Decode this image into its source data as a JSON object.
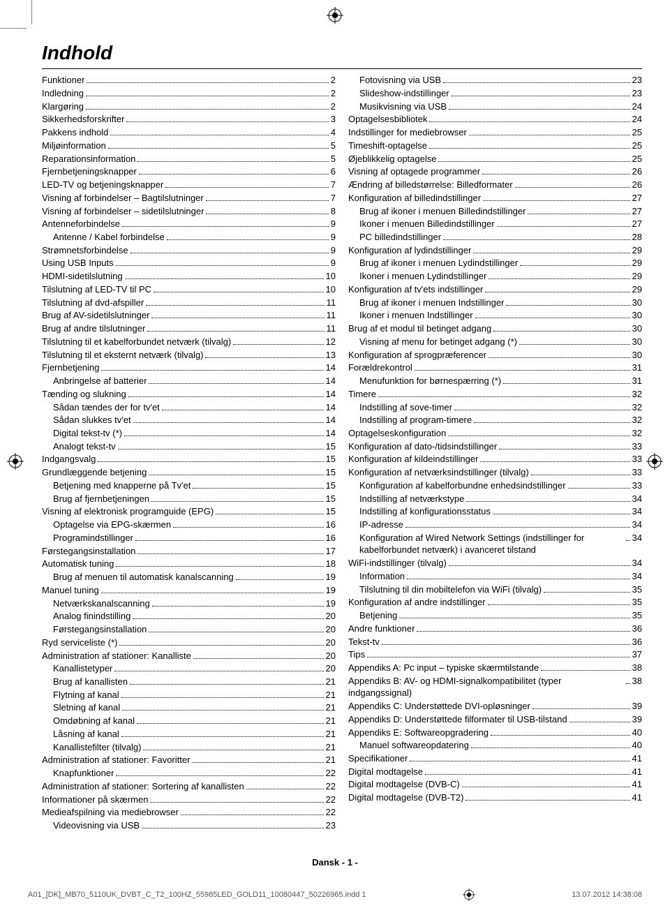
{
  "title": "Indhold",
  "footer_center": "Dansk   - 1 -",
  "footer_left": "A01_[DK]_MB70_5110UK_DVBT_C_T2_100HZ_55985LED_GOLD11_10080447_50226965.indd   1",
  "footer_right": "13.07.2012   14:38:08",
  "left": [
    {
      "t": "Funktioner",
      "p": "2",
      "i": 0
    },
    {
      "t": "Indledning",
      "p": "2",
      "i": 0
    },
    {
      "t": "Klargøring",
      "p": "2",
      "i": 0
    },
    {
      "t": "Sikkerhedsforskrifter",
      "p": "3",
      "i": 0
    },
    {
      "t": "Pakkens indhold",
      "p": "4",
      "i": 0
    },
    {
      "t": "Miljøinformation",
      "p": "5",
      "i": 0
    },
    {
      "t": "Reparationsinformation",
      "p": "5",
      "i": 0
    },
    {
      "t": "Fjernbetjeningsknapper",
      "p": "6",
      "i": 0
    },
    {
      "t": "LED-TV og betjeningsknapper",
      "p": "7",
      "i": 0
    },
    {
      "t": "Visning af forbindelser – Bagtilslutninger",
      "p": "7",
      "i": 0
    },
    {
      "t": "Visning af forbindelser – sidetilslutninger",
      "p": "8",
      "i": 0
    },
    {
      "t": "Antenneforbindelse",
      "p": "9",
      "i": 0
    },
    {
      "t": "Antenne / Kabel forbindelse",
      "p": "9",
      "i": 1
    },
    {
      "t": "Strømnetsforbindelse",
      "p": "9",
      "i": 0
    },
    {
      "t": "Using USB Inputs",
      "p": "9",
      "i": 0
    },
    {
      "t": "HDMI-sidetilslutning",
      "p": "10",
      "i": 0
    },
    {
      "t": "Tilslutning af LED-TV til PC",
      "p": "10",
      "i": 0
    },
    {
      "t": "Tilslutning af dvd-afspiller",
      "p": "11",
      "i": 0
    },
    {
      "t": "Brug af AV-sidetilslutninger",
      "p": "11",
      "i": 0
    },
    {
      "t": "Brug af andre tilslutninger",
      "p": "11",
      "i": 0
    },
    {
      "t": "Tilslutning til et kabelforbundet netværk (tilvalg)",
      "p": "12",
      "i": 0
    },
    {
      "t": "Tilslutning til et eksternt netværk (tilvalg)",
      "p": "13",
      "i": 0
    },
    {
      "t": "Fjernbetjening",
      "p": "14",
      "i": 0
    },
    {
      "t": "Anbringelse af batterier",
      "p": "14",
      "i": 1
    },
    {
      "t": "Tænding og slukning",
      "p": "14",
      "i": 0
    },
    {
      "t": "Sådan tændes der for tv'et",
      "p": "14",
      "i": 1
    },
    {
      "t": "Sådan slukkes tv'et",
      "p": "14",
      "i": 1
    },
    {
      "t": "Digital tekst-tv (*)",
      "p": "14",
      "i": 1
    },
    {
      "t": "Analogt tekst-tv",
      "p": "15",
      "i": 1
    },
    {
      "t": "Indgangsvalg",
      "p": "15",
      "i": 0
    },
    {
      "t": "Grundlæggende betjening",
      "p": "15",
      "i": 0
    },
    {
      "t": "Betjening med knapperne på Tv'et",
      "p": "15",
      "i": 1
    },
    {
      "t": "Brug af fjernbetjeningen",
      "p": "15",
      "i": 1
    },
    {
      "t": "Visning af elektronisk programguide (EPG)",
      "p": "15",
      "i": 0
    },
    {
      "t": "Optagelse via EPG-skærmen",
      "p": "16",
      "i": 1
    },
    {
      "t": "Programindstillinger",
      "p": "16",
      "i": 1
    },
    {
      "t": "Førstegangsinstallation",
      "p": "17",
      "i": 0
    },
    {
      "t": "Automatisk tuning",
      "p": "18",
      "i": 0
    },
    {
      "t": "Brug af menuen til automatisk kanalscanning",
      "p": "19",
      "i": 1
    },
    {
      "t": "Manuel tuning",
      "p": "19",
      "i": 0
    },
    {
      "t": "Netværkskanalscanning",
      "p": "19",
      "i": 1
    },
    {
      "t": "Analog finindstilling",
      "p": "20",
      "i": 1
    },
    {
      "t": "Førstegangsinstallation",
      "p": "20",
      "i": 1
    },
    {
      "t": "Ryd serviceliste (*)",
      "p": "20",
      "i": 0
    },
    {
      "t": "Administration af stationer: Kanalliste",
      "p": "20",
      "i": 0
    },
    {
      "t": "Kanallistetyper",
      "p": "20",
      "i": 1
    },
    {
      "t": "Brug af kanallisten",
      "p": "21",
      "i": 1
    },
    {
      "t": "Flytning af kanal",
      "p": "21",
      "i": 1
    },
    {
      "t": "Sletning af kanal",
      "p": "21",
      "i": 1
    },
    {
      "t": "Omdøbning af kanal",
      "p": "21",
      "i": 1
    },
    {
      "t": "Låsning af kanal",
      "p": "21",
      "i": 1
    },
    {
      "t": "Kanallistefilter (tilvalg)",
      "p": "21",
      "i": 1
    },
    {
      "t": "Administration af stationer: Favoritter",
      "p": "21",
      "i": 0
    },
    {
      "t": "Knapfunktioner",
      "p": "22",
      "i": 1
    },
    {
      "t": "Administration af stationer: Sortering af kanallisten",
      "p": "22",
      "i": 0,
      "wrap": true
    },
    {
      "t": "Informationer på skærmen",
      "p": "22",
      "i": 0
    },
    {
      "t": "Medieafspilning via mediebrowser",
      "p": "22",
      "i": 0
    },
    {
      "t": "Videovisning via USB",
      "p": "23",
      "i": 1
    }
  ],
  "right": [
    {
      "t": "Fotovisning via USB",
      "p": "23",
      "i": 1
    },
    {
      "t": "Slideshow-indstillinger",
      "p": "23",
      "i": 1
    },
    {
      "t": "Musikvisning via USB",
      "p": "24",
      "i": 1
    },
    {
      "t": "Optagelsesbibliotek",
      "p": "24",
      "i": 0
    },
    {
      "t": "Indstillinger for mediebrowser",
      "p": "25",
      "i": 0
    },
    {
      "t": "Timeshift-optagelse",
      "p": "25",
      "i": 0
    },
    {
      "t": "Øjeblikkelig optagelse",
      "p": "25",
      "i": 0
    },
    {
      "t": "Visning af optagede programmer",
      "p": "26",
      "i": 0
    },
    {
      "t": "Ændring af billedstørrelse: Billedformater",
      "p": "26",
      "i": 0
    },
    {
      "t": "Konfiguration af billedindstillinger",
      "p": "27",
      "i": 0
    },
    {
      "t": "Brug af ikoner i menuen Billedindstillinger",
      "p": "27",
      "i": 1
    },
    {
      "t": "Ikoner i menuen Billedindstillinger",
      "p": "27",
      "i": 1
    },
    {
      "t": "PC billedindstillinger",
      "p": "28",
      "i": 1
    },
    {
      "t": "Konfiguration af lydindstillinger",
      "p": "29",
      "i": 0
    },
    {
      "t": "Brug af ikoner i menuen Lydindstillinger",
      "p": "29",
      "i": 1
    },
    {
      "t": "Ikoner i menuen Lydindstillinger",
      "p": "29",
      "i": 1
    },
    {
      "t": "Konfiguration af tv'ets indstillinger",
      "p": "29",
      "i": 0
    },
    {
      "t": "Brug af ikoner i menuen Indstillinger",
      "p": "30",
      "i": 1
    },
    {
      "t": "Ikoner i menuen Indstillinger",
      "p": "30",
      "i": 1
    },
    {
      "t": "Brug af et modul til betinget adgang",
      "p": "30",
      "i": 0
    },
    {
      "t": "Visning af menu for betinget adgang (*)",
      "p": "30",
      "i": 1
    },
    {
      "t": "Konfiguration af sprogpræferencer",
      "p": "30",
      "i": 0
    },
    {
      "t": "Forældrekontrol",
      "p": "31",
      "i": 0
    },
    {
      "t": "Menufunktion for børnespærring (*)",
      "p": "31",
      "i": 1
    },
    {
      "t": "Timere",
      "p": "32",
      "i": 0
    },
    {
      "t": "Indstilling af sove-timer",
      "p": "32",
      "i": 1
    },
    {
      "t": "Indstilling af program-timere",
      "p": "32",
      "i": 1
    },
    {
      "t": "Optagelseskonfiguration",
      "p": "32",
      "i": 0
    },
    {
      "t": "Konfiguration af dato-/tidsindstillinger",
      "p": "33",
      "i": 0
    },
    {
      "t": "Konfiguration af kildeindstillinger",
      "p": "33",
      "i": 0
    },
    {
      "t": "Konfiguration af netværksindstillinger (tilvalg)",
      "p": "33",
      "i": 0
    },
    {
      "t": "Konfiguration af kabelforbundne enhedsindstillinger",
      "p": "33",
      "i": 1,
      "wrap": true
    },
    {
      "t": "Indstilling af netværkstype",
      "p": "34",
      "i": 1
    },
    {
      "t": "Indstilling af konfigurationsstatus",
      "p": "34",
      "i": 1
    },
    {
      "t": "IP-adresse",
      "p": "34",
      "i": 1
    },
    {
      "t": "Konfiguration af Wired Network Settings (indstillinger for kabelforbundet netværk) i avanceret tilstand",
      "p": "34",
      "i": 1,
      "wrap": true
    },
    {
      "t": "WiFi-indstillinger (tilvalg)",
      "p": "34",
      "i": 0
    },
    {
      "t": "Information",
      "p": "34",
      "i": 1
    },
    {
      "t": "Tilslutning til din mobiltelefon via WiFi (tilvalg)",
      "p": "35",
      "i": 1
    },
    {
      "t": "Konfiguration af andre indstillinger",
      "p": "35",
      "i": 0
    },
    {
      "t": "Betjening",
      "p": "35",
      "i": 1
    },
    {
      "t": "Andre funktioner",
      "p": "36",
      "i": 0
    },
    {
      "t": "Tekst-tv",
      "p": "36",
      "i": 0
    },
    {
      "t": "Tips",
      "p": "37",
      "i": 0
    },
    {
      "t": "Appendiks A: Pc input – typiske skærmtilstande",
      "p": "38",
      "i": 0
    },
    {
      "t": "Appendiks B: AV- og HDMI-signalkompatibilitet (typer indgangssignal)",
      "p": "38",
      "i": 0,
      "wrap": true
    },
    {
      "t": "Appendiks C: Understøttede DVI-opløsninger",
      "p": "39",
      "i": 0
    },
    {
      "t": "Appendiks D: Understøttede filformater til USB-tilstand",
      "p": "39",
      "i": 0,
      "wrap": true
    },
    {
      "t": "Appendiks E: Softwareopgradering",
      "p": "40",
      "i": 0
    },
    {
      "t": "Manuel softwareopdatering",
      "p": "40",
      "i": 1
    },
    {
      "t": "Specifikationer",
      "p": "41",
      "i": 0
    },
    {
      "t": "Digital modtagelse",
      "p": "41",
      "i": 0
    },
    {
      "t": "Digital modtagelse (DVB-C)",
      "p": "41",
      "i": 0
    },
    {
      "t": "Digital modtagelse (DVB-T2)",
      "p": "41",
      "i": 0
    }
  ]
}
